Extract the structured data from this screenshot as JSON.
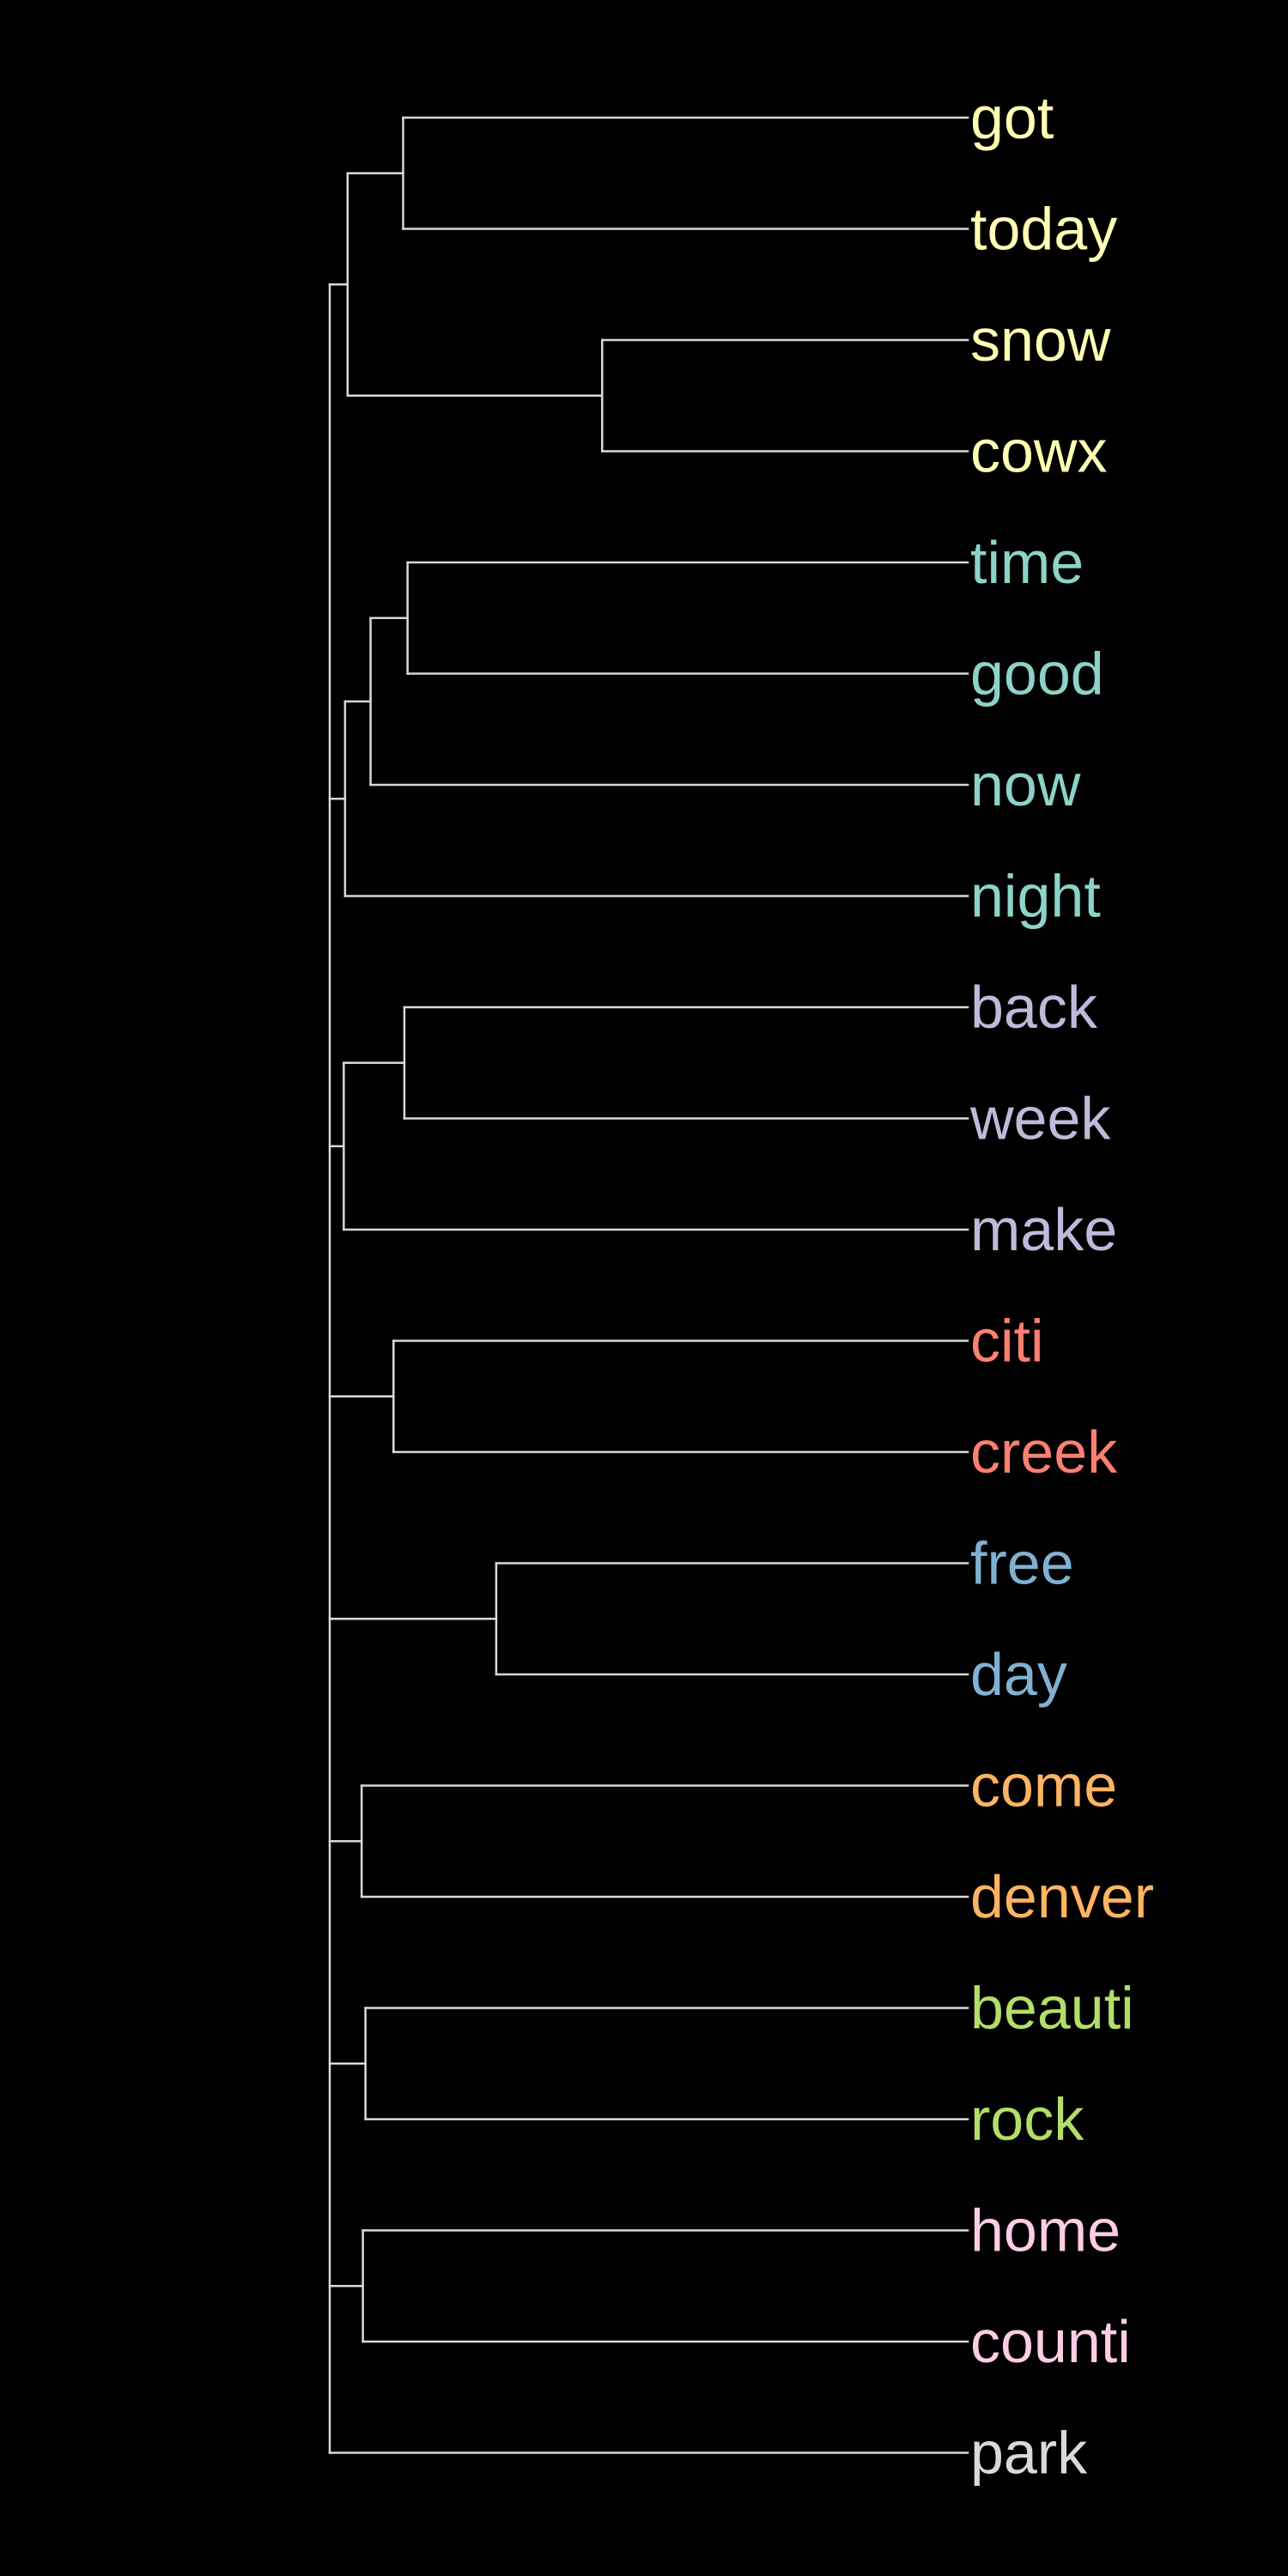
{
  "dendrogram": {
    "orientation": "left-to-right",
    "leaves": [
      {
        "label": "got",
        "color": "#ffffb3"
      },
      {
        "label": "today",
        "color": "#ffffb3"
      },
      {
        "label": "snow",
        "color": "#ffffb3"
      },
      {
        "label": "cowx",
        "color": "#ffffb3"
      },
      {
        "label": "time",
        "color": "#8dd3c7"
      },
      {
        "label": "good",
        "color": "#8dd3c7"
      },
      {
        "label": "now",
        "color": "#8dd3c7"
      },
      {
        "label": "night",
        "color": "#8dd3c7"
      },
      {
        "label": "back",
        "color": "#bebada"
      },
      {
        "label": "week",
        "color": "#bebada"
      },
      {
        "label": "make",
        "color": "#bebada"
      },
      {
        "label": "citi",
        "color": "#fb8072"
      },
      {
        "label": "creek",
        "color": "#fb8072"
      },
      {
        "label": "free",
        "color": "#80b1d3"
      },
      {
        "label": "day",
        "color": "#80b1d3"
      },
      {
        "label": "come",
        "color": "#fdb462"
      },
      {
        "label": "denver",
        "color": "#fdb462"
      },
      {
        "label": "beauti",
        "color": "#b3de69"
      },
      {
        "label": "rock",
        "color": "#b3de69"
      },
      {
        "label": "home",
        "color": "#fccde5"
      },
      {
        "label": "counti",
        "color": "#fccde5"
      },
      {
        "label": "park",
        "color": "#d9d9d9"
      }
    ],
    "merges": [
      {
        "id": "A",
        "children": [
          0,
          1
        ],
        "height": 0.885
      },
      {
        "id": "B",
        "children": [
          2,
          3
        ],
        "height": 0.573
      },
      {
        "id": "C",
        "children": [
          "A",
          "B"
        ],
        "height": 0.972
      },
      {
        "id": "D",
        "children": [
          4,
          5
        ],
        "height": 0.878
      },
      {
        "id": "E",
        "children": [
          "D",
          6
        ],
        "height": 0.936
      },
      {
        "id": "F",
        "children": [
          "E",
          7
        ],
        "height": 0.976
      },
      {
        "id": "G",
        "children": [
          8,
          9
        ],
        "height": 0.883
      },
      {
        "id": "H",
        "children": [
          "G",
          10
        ],
        "height": 0.978
      },
      {
        "id": "I",
        "children": [
          11,
          12
        ],
        "height": 0.9
      },
      {
        "id": "J",
        "children": [
          13,
          14
        ],
        "height": 0.739
      },
      {
        "id": "K",
        "children": [
          15,
          16
        ],
        "height": 0.95
      },
      {
        "id": "L",
        "children": [
          17,
          18
        ],
        "height": 0.944
      },
      {
        "id": "M",
        "children": [
          19,
          20
        ],
        "height": 0.948
      },
      {
        "id": "ROOT",
        "children": [
          "C",
          "F",
          "H",
          "I",
          "J",
          "K",
          "L",
          "M",
          21
        ],
        "height": 1.0
      }
    ]
  }
}
